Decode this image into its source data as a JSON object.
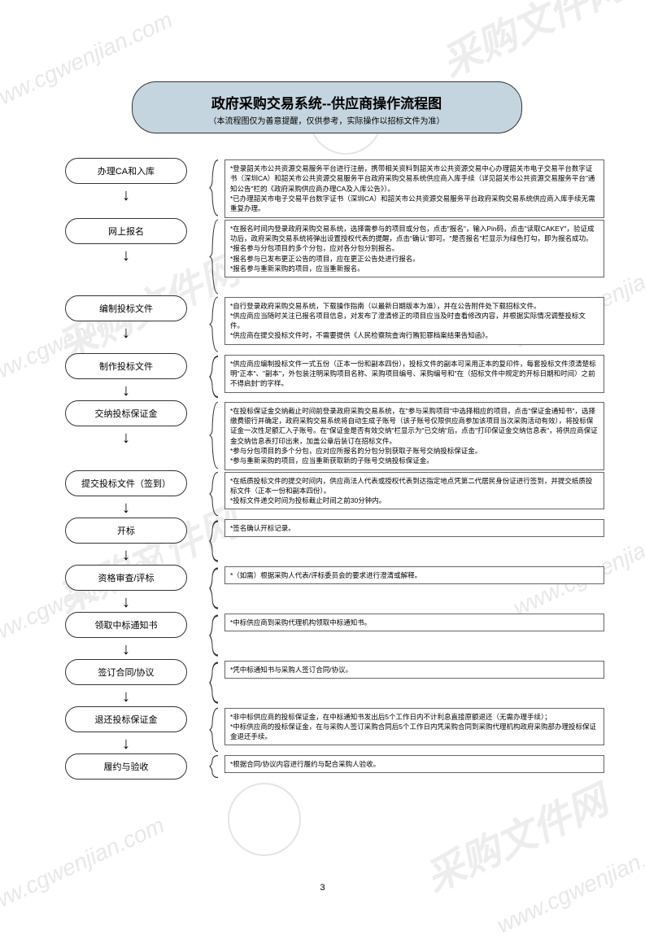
{
  "watermarks": {
    "url": "www.cgwenjian.com",
    "brand": "采购文件网"
  },
  "title": {
    "main": "政府采购交易系统--供应商操作流程图",
    "sub": "（本流程图仅为善意提醒，仅供参考，实际操作以招标文件为准）"
  },
  "steps": [
    {
      "label": "办理CA和入库",
      "desc": [
        "*登录韶关市公共资源交易服务平台进行注册，携带相关资料到韶关市公共资源交易中心办理韶关市电子交易平台数字证书（深圳CA）和韶关市公共资源交易服务平台政府采购交易系统供应商入库手续（详见韶关市公共资源交易服务平台\"通知公告\"栏的《政府采购供应商办理CA及入库公告》）。",
        "*已办理韶关市电子交易平台数字证书（深圳CA）和韶关市公共资源交易服务平台政府采购交易系统供应商入库手续无需重复办理。"
      ]
    },
    {
      "label": "网上报名",
      "desc": [
        "*在报名时间内登录政府采购交易系统，选择需参与的项目或分包，点击\"报名\"，输入Pin码，点击\"读取CAKEY\"，验证成功后，政府采购交易系统将弹出设置授权代表的提醒，点击\"确认\"即可。\"是否报名\"栏显示为绿色打勾，即为报名成功。",
        "*报名参与分包项目的多个分包，应对各分包分别报名。",
        "*报名参与已发布更正公告的项目，应在更正公告处进行报名。",
        "*报名参与重新采购的项目，应当重新报名。"
      ]
    },
    {
      "label": "编制投标文件",
      "desc": [
        "*自行登录政府采购交易系统，下载操作指南（以最新日期版本为准），并在公告附件处下载招标文件。",
        "*供应商应当随时关注已报名项目信息，对发布了澄清修正的项目应当及时查看修改内容，并根据实际情况调整投标文件。",
        "*供应商在提交投标文件时，不需要提供《人民检察院查询行贿犯罪档案结果告知函》。"
      ]
    },
    {
      "label": "制作投标文件",
      "desc": [
        "*供应商应编制投标文件一式五份（正本一份和副本四份），投标文件的副本可采用正本的复印件，每套投标文件须清楚标明\"正本\"、\"副本\"，外包装注明采购项目名称、采购项目编号、采购编号和\"在（招标文件中规定的开标日期和时间）之前不得启封\"的字样。"
      ]
    },
    {
      "label": "交纳投标保证金",
      "desc": [
        "*在投标保证金交纳截止时间前登录政府采购交易系统，在\"参与采购项目\"中选择相应的项目，点击\"保证金通知书\"，选择缴费银行并确定，政府采购交易系统将自动生成子账号（该子账号仅限供应商参加该项目当次采购活动有效），将投标保证金一次性足额汇入子账号。在\"保证金是否有效交纳\"栏显示为\"已交纳\"后，点击\"打印保证金交纳信息表\"，将供应商保证金交纳信息表打印出来，加盖公章后装订在招标文件。",
        "*参与分包项目的多个分包，应对应所报名的分包分别获取子账号交纳投标保证金。",
        "*参与重新采购的项目，应当重新获取新的子账号交纳投标保证金。"
      ]
    },
    {
      "label": "提交投标文件（签到）",
      "desc": [
        "*在纸质投标文件的提交时间内，供应商法人代表或授权代表到达指定地点凭第二代居民身份证进行签到，并提交纸质投标文件（正本一份和副本四份）。",
        "*投标文件递交时间为投标截止时间之前30分钟内。"
      ]
    },
    {
      "label": "开标",
      "desc": [
        "*签名确认开标记录。"
      ]
    },
    {
      "label": "资格审查/评标",
      "desc": [
        "*（如需）根据采购人代表/评标委员会的要求进行澄清或解释。"
      ]
    },
    {
      "label": "领取中标通知书",
      "desc": [
        "*中标供应商到采购代理机构领取中标通知书。"
      ]
    },
    {
      "label": "签订合同/协议",
      "desc": [
        "*凭中标通知书与采购人签订合同/协议。"
      ]
    },
    {
      "label": "退还投标保证金",
      "desc": [
        "*非中标供应商的投标保证金，在中标通知书发出后5个工作日内不计利息直接原额退还（无需办理手续）；",
        "*中标供应商的投标保证金，在与采购人签订采购合同后5个工作日内凭采购合同到采购代理机构政府采购部办理投标保证金退还手续。"
      ]
    },
    {
      "label": "履约与验收",
      "desc": [
        "*根据合同/协议内容进行履约与配合采购人验收。"
      ]
    }
  ],
  "page_number": "3",
  "colors": {
    "title_bg": "#c5d5e0",
    "border": "#333333",
    "watermark": "#e8e8e8"
  }
}
